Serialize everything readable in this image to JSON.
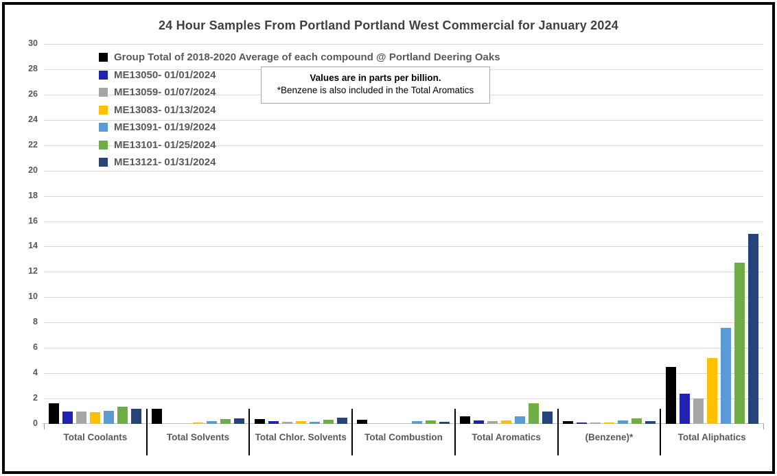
{
  "chart_data": {
    "type": "bar",
    "title": "24 Hour Samples From Portland Portland West Commercial for January 2024",
    "units_note": {
      "line1": "Values are in parts per billion.",
      "line2": "*Benzene is also included in the Total Aromatics"
    },
    "categories": [
      "Total Coolants",
      "Total Solvents",
      "Total Chlor. Solvents",
      "Total Combustion",
      "Total Aromatics",
      "(Benzene)*",
      "Total Aliphatics"
    ],
    "series": [
      {
        "name": "Group Total of 2018-2020 Average of each compound @ Portland Deering Oaks",
        "color": "#000000",
        "values": [
          1.6,
          1.2,
          0.4,
          0.3,
          0.6,
          0.2,
          4.5
        ]
      },
      {
        "name": "ME13050- 01/01/2024",
        "color": "#2222b2",
        "values": [
          1.0,
          0,
          0.2,
          0,
          0.25,
          0.1,
          2.4
        ]
      },
      {
        "name": "ME13059- 01/07/2024",
        "color": "#a6a6a6",
        "values": [
          1.0,
          0,
          0.15,
          0,
          0.2,
          0.1,
          2.0
        ]
      },
      {
        "name": "ME13083- 01/13/2024",
        "color": "#ffc000",
        "values": [
          0.9,
          0.1,
          0.2,
          0,
          0.25,
          0.1,
          5.2
        ]
      },
      {
        "name": "ME13091- 01/19/2024",
        "color": "#5b9bd5",
        "values": [
          1.05,
          0.2,
          0.15,
          0.2,
          0.6,
          0.25,
          7.6
        ]
      },
      {
        "name": "ME13101- 01/25/2024",
        "color": "#70ad47",
        "values": [
          1.35,
          0.4,
          0.3,
          0.25,
          1.6,
          0.45,
          12.7
        ]
      },
      {
        "name": "ME13121- 01/31/2024",
        "color": "#264478",
        "values": [
          1.2,
          0.45,
          0.5,
          0.15,
          1.0,
          0.2,
          15.0
        ]
      }
    ],
    "ylim": [
      0,
      30
    ],
    "ytick_step": 2,
    "grid": true,
    "legend_position": "top-left",
    "colors": {
      "gridline": "#d9d9d9",
      "axis_line": "#bfbfbf",
      "text": "#595959",
      "title_text": "#404040",
      "frame_border": "#000000",
      "note_border": "#ababab"
    }
  }
}
